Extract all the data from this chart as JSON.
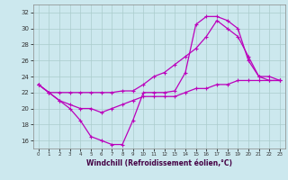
{
  "background_color": "#cce8ee",
  "grid_color": "#aacccc",
  "line_color": "#bb00bb",
  "xlabel": "Windchill (Refroidissement éolien,°C)",
  "xlim": [
    -0.5,
    23.5
  ],
  "ylim": [
    15.0,
    33.0
  ],
  "yticks": [
    16,
    18,
    20,
    22,
    24,
    26,
    28,
    30,
    32
  ],
  "xticks": [
    0,
    1,
    2,
    3,
    4,
    5,
    6,
    7,
    8,
    9,
    10,
    11,
    12,
    13,
    14,
    15,
    16,
    17,
    18,
    19,
    20,
    21,
    22,
    23
  ],
  "series1_x": [
    0,
    1,
    2,
    3,
    4,
    5,
    6,
    7,
    8,
    9,
    10,
    11,
    12,
    13,
    14,
    15,
    16,
    17,
    18,
    19,
    20,
    21,
    22,
    23
  ],
  "series1_y": [
    23.0,
    22.0,
    21.0,
    20.0,
    18.5,
    16.5,
    16.0,
    15.5,
    15.5,
    18.5,
    22.0,
    22.0,
    22.0,
    22.2,
    24.5,
    30.5,
    31.5,
    31.5,
    31.0,
    30.0,
    26.0,
    24.0,
    24.0,
    23.5
  ],
  "series2_x": [
    0,
    1,
    2,
    3,
    4,
    5,
    6,
    7,
    8,
    9,
    10,
    11,
    12,
    13,
    14,
    15,
    16,
    17,
    18,
    19,
    20,
    21,
    22,
    23
  ],
  "series2_y": [
    23.0,
    22.0,
    22.0,
    22.0,
    22.0,
    22.0,
    22.0,
    22.0,
    22.2,
    22.2,
    23.0,
    24.0,
    24.5,
    25.5,
    26.5,
    27.5,
    29.0,
    31.0,
    30.0,
    29.0,
    26.5,
    24.0,
    23.5,
    23.5
  ],
  "series3_x": [
    0,
    1,
    2,
    3,
    4,
    5,
    6,
    7,
    8,
    9,
    10,
    11,
    12,
    13,
    14,
    15,
    16,
    17,
    18,
    19,
    20,
    21,
    22,
    23
  ],
  "series3_y": [
    23.0,
    22.0,
    21.0,
    20.5,
    20.0,
    20.0,
    19.5,
    20.0,
    20.5,
    21.0,
    21.5,
    21.5,
    21.5,
    21.5,
    22.0,
    22.5,
    22.5,
    23.0,
    23.0,
    23.5,
    23.5,
    23.5,
    23.5,
    23.5
  ]
}
